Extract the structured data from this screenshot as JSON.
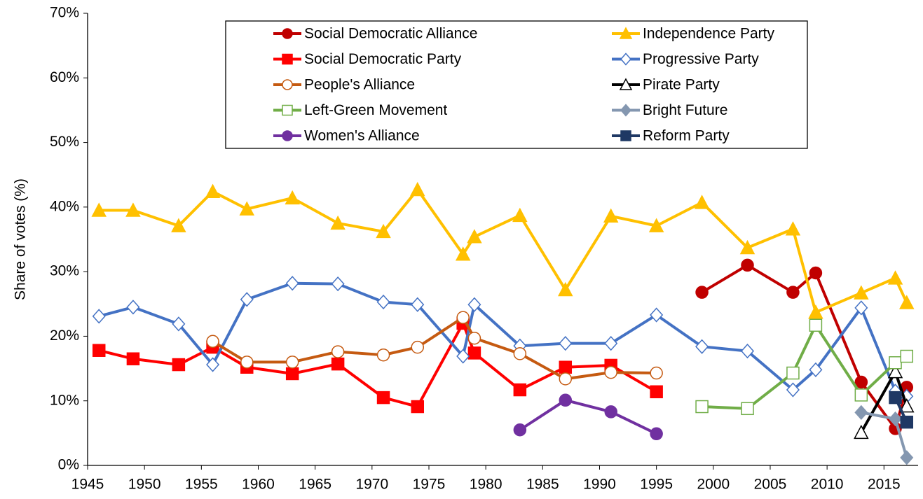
{
  "chart_data": {
    "type": "line",
    "ylabel": "Share of votes (%)",
    "xlim": [
      1945,
      2018
    ],
    "xticks": [
      1945,
      1950,
      1955,
      1960,
      1965,
      1970,
      1975,
      1980,
      1985,
      1990,
      1995,
      2000,
      2005,
      2010,
      2015
    ],
    "ylim": [
      0,
      70
    ],
    "yticks": [
      {
        "value": 0,
        "label": "0%"
      },
      {
        "value": 10,
        "label": "10%"
      },
      {
        "value": 20,
        "label": "20%"
      },
      {
        "value": 30,
        "label": "30%"
      },
      {
        "value": 40,
        "label": "40%"
      },
      {
        "value": 50,
        "label": "50%"
      },
      {
        "value": 60,
        "label": "60%"
      },
      {
        "value": 70,
        "label": "70%"
      }
    ],
    "grid": false,
    "legend": "top",
    "series": [
      {
        "name": "Social Democratic Alliance",
        "color": "#c00000",
        "marker": "circle",
        "hollow": false,
        "x": [
          1999,
          2003,
          2007,
          2009,
          2013,
          2016,
          2017
        ],
        "values": [
          26.8,
          31.0,
          26.8,
          29.8,
          12.9,
          5.7,
          12.1
        ]
      },
      {
        "name": "Independence Party",
        "color": "#ffc000",
        "marker": "triangle",
        "hollow": false,
        "x": [
          1946,
          1949,
          1953,
          1956,
          1959,
          1963,
          1967,
          1971,
          1974,
          1978,
          1979,
          1983,
          1987,
          1991,
          1995,
          1999,
          2003,
          2007,
          2009,
          2013,
          2016,
          2017
        ],
        "values": [
          39.5,
          39.5,
          37.1,
          42.4,
          39.7,
          41.4,
          37.5,
          36.2,
          42.7,
          32.7,
          35.4,
          38.7,
          27.2,
          38.6,
          37.1,
          40.7,
          33.7,
          36.6,
          23.7,
          26.7,
          29.0,
          25.2
        ]
      },
      {
        "name": "Social Democratic Party",
        "color": "#ff0000",
        "marker": "square",
        "hollow": false,
        "x": [
          1946,
          1949,
          1953,
          1956,
          1959,
          1963,
          1967,
          1971,
          1974,
          1978,
          1979,
          1983,
          1987,
          1991,
          1995
        ],
        "values": [
          17.8,
          16.5,
          15.6,
          18.3,
          15.2,
          14.2,
          15.7,
          10.5,
          9.1,
          22.0,
          17.4,
          11.7,
          15.2,
          15.5,
          11.4
        ]
      },
      {
        "name": "Progressive Party",
        "color": "#4472c4",
        "marker": "diamond",
        "hollow": true,
        "x": [
          1946,
          1949,
          1953,
          1956,
          1959,
          1963,
          1967,
          1971,
          1974,
          1978,
          1979,
          1983,
          1987,
          1991,
          1995,
          1999,
          2003,
          2007,
          2009,
          2013,
          2016,
          2017
        ],
        "values": [
          23.1,
          24.5,
          21.9,
          15.6,
          25.7,
          28.2,
          28.1,
          25.3,
          24.9,
          16.9,
          24.9,
          18.5,
          18.9,
          18.9,
          23.3,
          18.4,
          17.7,
          11.7,
          14.8,
          24.4,
          11.5,
          10.7
        ]
      },
      {
        "name": "People's Alliance",
        "color": "#c55a11",
        "marker": "circle",
        "hollow": true,
        "x": [
          1956,
          1959,
          1963,
          1967,
          1971,
          1974,
          1978,
          1979,
          1983,
          1987,
          1991,
          1995
        ],
        "values": [
          19.2,
          16.0,
          16.0,
          17.6,
          17.1,
          18.3,
          22.9,
          19.7,
          17.3,
          13.4,
          14.4,
          14.3
        ]
      },
      {
        "name": "Pirate Party",
        "color": "#000000",
        "marker": "triangle",
        "hollow": true,
        "x": [
          2013,
          2016,
          2017
        ],
        "values": [
          5.1,
          14.5,
          9.2
        ]
      },
      {
        "name": "Left-Green Movement",
        "color": "#70ad47",
        "marker": "square",
        "hollow": true,
        "x": [
          1999,
          2003,
          2007,
          2009,
          2013,
          2016,
          2017
        ],
        "values": [
          9.1,
          8.8,
          14.3,
          21.7,
          10.9,
          15.9,
          16.9
        ]
      },
      {
        "name": "Bright Future",
        "color": "#8497b0",
        "marker": "diamond",
        "hollow": false,
        "x": [
          2013,
          2016,
          2017
        ],
        "values": [
          8.2,
          7.2,
          1.2
        ]
      },
      {
        "name": "Women's Alliance",
        "color": "#7030a0",
        "marker": "circle",
        "hollow": false,
        "x": [
          1983,
          1987,
          1991,
          1995
        ],
        "values": [
          5.5,
          10.1,
          8.3,
          4.9
        ]
      },
      {
        "name": "Reform Party",
        "color": "#1f3864",
        "marker": "square",
        "hollow": false,
        "x": [
          2016,
          2017
        ],
        "values": [
          10.5,
          6.7
        ]
      }
    ]
  }
}
